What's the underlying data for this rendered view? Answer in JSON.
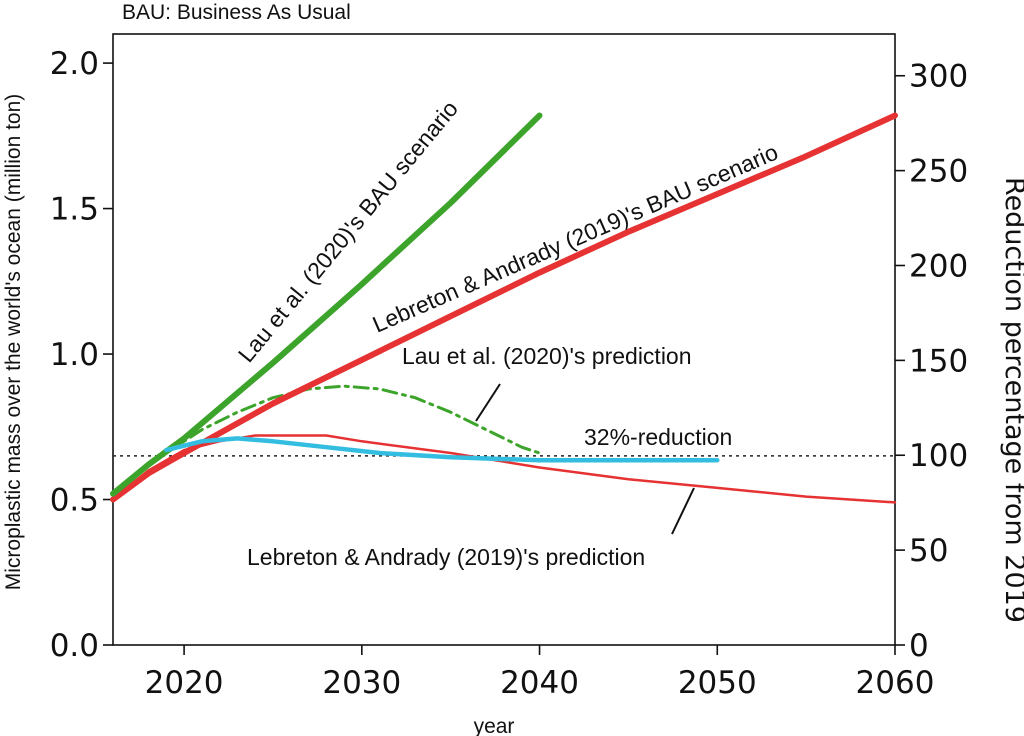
{
  "chart_data": {
    "type": "line",
    "note": "BAU: Business As Usual",
    "xlabel": "year",
    "ylabel": "Microplastic mass over the world's ocean (million ton)",
    "ylabel_right": "Reduction percentage from 2019",
    "xlim": [
      2016,
      2060
    ],
    "ylim": [
      0,
      2.1
    ],
    "ylim_right": [
      0,
      322
    ],
    "x_ticks": [
      2020,
      2030,
      2040,
      2050,
      2060
    ],
    "y_ticks": [
      0.0,
      0.5,
      1.0,
      1.5,
      2.0
    ],
    "y_tick_labels": [
      "0.0",
      "0.5",
      "1.0",
      "1.5",
      "2.0"
    ],
    "y_right_ticks": [
      0,
      50,
      100,
      150,
      200,
      250,
      300
    ],
    "grid": false,
    "reference_line": {
      "y": 0.65,
      "label": "32%-reduction",
      "color": "#222222"
    },
    "series": [
      {
        "name": "Lau et al. (2020)'s BAU scenario",
        "color": "#3da42b",
        "style": "solid-thick",
        "x": [
          2016,
          2018,
          2020,
          2025,
          2030,
          2035,
          2040
        ],
        "y": [
          0.52,
          0.62,
          0.71,
          0.97,
          1.24,
          1.52,
          1.82
        ]
      },
      {
        "name": "Lebreton & Andrady (2019)'s BAU scenario",
        "color": "#e63232",
        "style": "solid-thick",
        "x": [
          2016,
          2018,
          2020,
          2025,
          2030,
          2035,
          2040,
          2045,
          2050,
          2055,
          2060
        ],
        "y": [
          0.5,
          0.59,
          0.66,
          0.83,
          0.98,
          1.13,
          1.28,
          1.42,
          1.55,
          1.68,
          1.82
        ]
      },
      {
        "name": "Lau et al. (2020)'s prediction",
        "color": "#3da42b",
        "style": "dashdot",
        "x": [
          2019,
          2021,
          2023,
          2025,
          2027,
          2029,
          2031,
          2033,
          2035,
          2037,
          2038,
          2039,
          2040
        ],
        "y": [
          0.66,
          0.74,
          0.8,
          0.85,
          0.88,
          0.89,
          0.88,
          0.85,
          0.8,
          0.74,
          0.71,
          0.68,
          0.66
        ]
      },
      {
        "name": "Lebreton & Andrady (2019)'s prediction",
        "color": "#e63232",
        "style": "solid-thin",
        "x": [
          2016,
          2018,
          2020,
          2022,
          2024,
          2026,
          2028,
          2030,
          2035,
          2040,
          2045,
          2050,
          2055,
          2060
        ],
        "y": [
          0.5,
          0.6,
          0.67,
          0.7,
          0.72,
          0.72,
          0.72,
          0.7,
          0.66,
          0.61,
          0.57,
          0.54,
          0.51,
          0.49
        ]
      },
      {
        "name": "",
        "color": "#33bde0",
        "style": "solid-medium",
        "x": [
          2019,
          2021,
          2023,
          2025,
          2028,
          2031,
          2035,
          2040,
          2045,
          2050
        ],
        "y": [
          0.67,
          0.7,
          0.71,
          0.7,
          0.68,
          0.66,
          0.645,
          0.635,
          0.635,
          0.635
        ]
      }
    ]
  },
  "annotations": {
    "lau_bau": "Lau et al. (2020)'s BAU scenario",
    "lebreton_bau": "Lebreton & Andrady (2019)'s BAU scenario",
    "lau_pred": "Lau et al. (2020)'s prediction",
    "lebreton_pred": "Lebreton & Andrady (2019)'s prediction",
    "reduction": "32%-reduction"
  }
}
